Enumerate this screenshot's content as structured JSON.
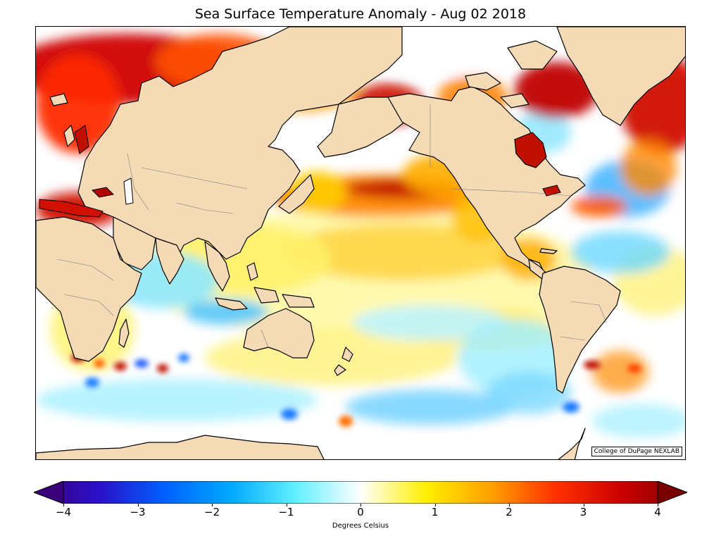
{
  "title": "Sea Surface Temperature Anomaly - Aug 02 2018",
  "credit": "College of DuPage NEXLAB",
  "colorbar": {
    "label": "Degrees Celsius",
    "min": -4,
    "max": 4,
    "ticks": [
      "−4",
      "−3",
      "−2",
      "−1",
      "0",
      "1",
      "2",
      "3",
      "4"
    ],
    "tick_values": [
      -4,
      -3,
      -2,
      -1,
      0,
      1,
      2,
      3,
      4
    ],
    "colors": [
      "#3a007a",
      "#2a10c8",
      "#0060ff",
      "#00a8ff",
      "#60f0ff",
      "#ffffff",
      "#fff000",
      "#ffa000",
      "#ff3000",
      "#cc0000",
      "#7a0000"
    ]
  },
  "colors": {
    "land": "#f5dbb5",
    "warm_strong": "#b00000",
    "warm": "#ff8a00",
    "warm_light": "#fff26a",
    "cool": "#6fd8ff",
    "cool_strong": "#1a7bff"
  }
}
